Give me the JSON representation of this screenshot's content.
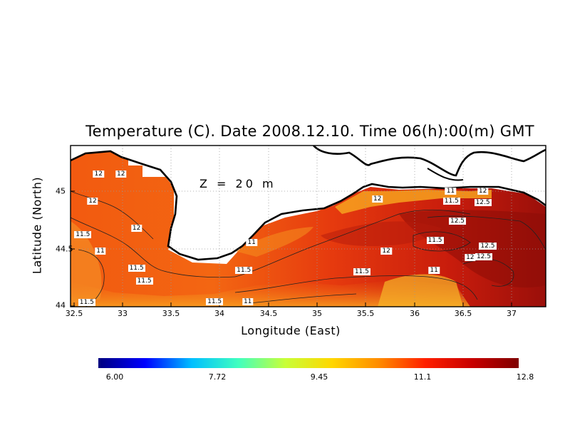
{
  "title": "Temperature (C). Date 2008.12.10. Time 06(h):00(m) GMT",
  "depth_label": "Z = 20 m",
  "xlabel": "Longitude (East)",
  "ylabel": "Latitude (North)",
  "x_ticks": [
    "32.5",
    "33",
    "33.5",
    "34",
    "34.5",
    "35",
    "35.5",
    "36",
    "36.5",
    "37"
  ],
  "y_ticks": [
    "45",
    "44.5",
    "44"
  ],
  "colorbar_ticks": [
    "6.00",
    "7.72",
    "9.45",
    "11.1",
    "12.8"
  ],
  "colorbar_colors": [
    "#00007f",
    "#0000ff",
    "#00bfff",
    "#40ffbf",
    "#c8ff37",
    "#ffd700",
    "#ff8c00",
    "#ff2000",
    "#c80000",
    "#7f0000"
  ],
  "contour_labels": [
    {
      "text": "12",
      "lon": 32.75,
      "lat": 45.15
    },
    {
      "text": "12",
      "lon": 32.98,
      "lat": 45.15
    },
    {
      "text": "12",
      "lon": 32.69,
      "lat": 44.91
    },
    {
      "text": "11.5",
      "lon": 32.59,
      "lat": 44.62
    },
    {
      "text": "12",
      "lon": 33.14,
      "lat": 44.68
    },
    {
      "text": "11",
      "lon": 32.77,
      "lat": 44.48
    },
    {
      "text": "11.5",
      "lon": 33.14,
      "lat": 44.33
    },
    {
      "text": "11.5",
      "lon": 33.22,
      "lat": 44.22
    },
    {
      "text": "11.5",
      "lon": 32.63,
      "lat": 44.03
    },
    {
      "text": "11.5",
      "lon": 33.94,
      "lat": 44.04
    },
    {
      "text": "11",
      "lon": 34.32,
      "lat": 44.55
    },
    {
      "text": "11.5",
      "lon": 34.24,
      "lat": 44.31
    },
    {
      "text": "11",
      "lon": 34.28,
      "lat": 44.04
    },
    {
      "text": "12",
      "lon": 35.61,
      "lat": 44.93
    },
    {
      "text": "12",
      "lon": 35.7,
      "lat": 44.48
    },
    {
      "text": "11.5",
      "lon": 35.45,
      "lat": 44.3
    },
    {
      "text": "11",
      "lon": 36.19,
      "lat": 44.31
    },
    {
      "text": "11",
      "lon": 36.36,
      "lat": 45.0
    },
    {
      "text": "11.5",
      "lon": 36.37,
      "lat": 44.91
    },
    {
      "text": "12",
      "lon": 36.69,
      "lat": 45.0
    },
    {
      "text": "12.5",
      "lon": 36.69,
      "lat": 44.9
    },
    {
      "text": "12.5",
      "lon": 36.43,
      "lat": 44.74
    },
    {
      "text": "11.5",
      "lon": 36.2,
      "lat": 44.57
    },
    {
      "text": "12.5",
      "lon": 36.74,
      "lat": 44.52
    },
    {
      "text": "12",
      "lon": 36.56,
      "lat": 44.42
    },
    {
      "text": "12.5",
      "lon": 36.7,
      "lat": 44.43
    }
  ]
}
